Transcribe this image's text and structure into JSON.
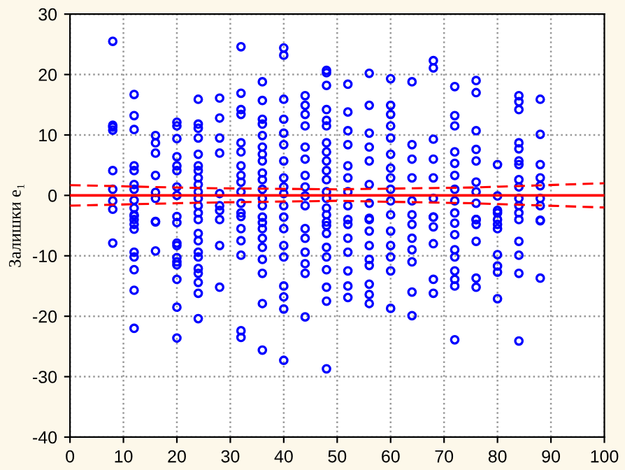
{
  "chart_data": {
    "type": "scatter",
    "ylabel": "Залишки e₁",
    "xlim": [
      0,
      100
    ],
    "ylim": [
      -40,
      30
    ],
    "xticks": [
      0,
      10,
      20,
      30,
      40,
      50,
      60,
      70,
      80,
      90,
      100
    ],
    "yticks": [
      -40,
      -30,
      -20,
      -10,
      0,
      10,
      20,
      30
    ],
    "grid": true,
    "marker": "circle",
    "ref_lines": [
      {
        "axis": "y",
        "value": 0,
        "color": "#ff0000",
        "line_style": "solid"
      }
    ],
    "series": [
      {
        "color": "#0000ff",
        "x": [
          8,
          8,
          8,
          8,
          8,
          8,
          8,
          8,
          8,
          12,
          12,
          12,
          12,
          12,
          12,
          12,
          12,
          12,
          12,
          12,
          12,
          12,
          12,
          12,
          12,
          12,
          12,
          12,
          16,
          16,
          16,
          16,
          16,
          16,
          16,
          16,
          16,
          20,
          20,
          20,
          20,
          20,
          20,
          20,
          20,
          20,
          20,
          20,
          20,
          20,
          20,
          20,
          20,
          20,
          20,
          24,
          24,
          24,
          24,
          24,
          24,
          24,
          24,
          24,
          24,
          24,
          24,
          24,
          24,
          24,
          24,
          24,
          24,
          24,
          24,
          24,
          24,
          24,
          28,
          28,
          28,
          28,
          28,
          28,
          28,
          28,
          28,
          28,
          32,
          32,
          32,
          32,
          32,
          32,
          32,
          32,
          32,
          32,
          32,
          32,
          32,
          32,
          32,
          32,
          32,
          32,
          36,
          36,
          36,
          36,
          36,
          36,
          36,
          36,
          36,
          36,
          36,
          36,
          36,
          36,
          36,
          36,
          36,
          36,
          36,
          36,
          36,
          36,
          40,
          40,
          40,
          40,
          40,
          40,
          40,
          40,
          40,
          40,
          40,
          40,
          40,
          40,
          40,
          40,
          40,
          40,
          40,
          44,
          44,
          44,
          44,
          44,
          44,
          44,
          44,
          44,
          44,
          44,
          44,
          44,
          44,
          44,
          44,
          48,
          48,
          48,
          48,
          48,
          48,
          48,
          48,
          48,
          48,
          48,
          48,
          48,
          48,
          48,
          48,
          48,
          48,
          48,
          48,
          48,
          48,
          48,
          48,
          52,
          52,
          52,
          52,
          52,
          52,
          52,
          52,
          52,
          52,
          52,
          52,
          52,
          52,
          52,
          56,
          56,
          56,
          56,
          56,
          56,
          56,
          56,
          56,
          56,
          56,
          56,
          56,
          56,
          56,
          56,
          60,
          60,
          60,
          60,
          60,
          60,
          60,
          60,
          60,
          60,
          60,
          60,
          60,
          60,
          60,
          60,
          64,
          64,
          64,
          64,
          64,
          64,
          64,
          64,
          64,
          64,
          64,
          64,
          68,
          68,
          68,
          68,
          68,
          68,
          68,
          68,
          68,
          68,
          68,
          68,
          72,
          72,
          72,
          72,
          72,
          72,
          72,
          72,
          72,
          72,
          72,
          72,
          72,
          72,
          72,
          72,
          72,
          76,
          76,
          76,
          76,
          76,
          76,
          76,
          76,
          76,
          76,
          76,
          76,
          76,
          76,
          80,
          80,
          80,
          80,
          80,
          80,
          80,
          80,
          80,
          80,
          80,
          84,
          84,
          84,
          84,
          84,
          84,
          84,
          84,
          84,
          84,
          84,
          84,
          84,
          84,
          84,
          84,
          84,
          88,
          88,
          88,
          88,
          88,
          88,
          88,
          88,
          88,
          88
        ],
        "values": [
          25.5,
          11.6,
          11.3,
          10.8,
          4.1,
          1.0,
          -0.9,
          -2.3,
          -7.9,
          16.7,
          13.2,
          10.9,
          4.9,
          4.1,
          1.8,
          1.0,
          -0.8,
          -2.1,
          -3.4,
          -4.0,
          -4.8,
          -9.4,
          -10.2,
          -12.3,
          -15.7,
          -22.0,
          -3.2,
          -5.6,
          9.9,
          8.7,
          7.0,
          3.3,
          0.5,
          -0.5,
          -4.3,
          -4.4,
          -9.2,
          12.1,
          11.5,
          9.4,
          6.4,
          4.9,
          4.1,
          1.4,
          0.0,
          -3.5,
          -4.5,
          -7.9,
          -8.3,
          -10.3,
          -11.0,
          -11.5,
          -13.9,
          -18.5,
          -23.6,
          15.9,
          11.8,
          11.1,
          9.5,
          6.8,
          4.9,
          4.1,
          2.9,
          1.8,
          0.6,
          -0.5,
          -1.7,
          -2.9,
          -4.0,
          -6.3,
          -7.5,
          -9.4,
          -10.2,
          -12.1,
          -12.9,
          -14.4,
          -16.2,
          -20.4,
          16.1,
          12.8,
          9.5,
          7.0,
          0.3,
          -1.7,
          -2.5,
          -4.0,
          -8.3,
          -15.2,
          24.6,
          16.9,
          14.2,
          13.4,
          8.7,
          7.2,
          4.9,
          3.3,
          2.2,
          0.6,
          -1.3,
          -2.9,
          -3.5,
          -5.5,
          -7.5,
          -9.9,
          -22.4,
          -23.5,
          18.8,
          15.7,
          12.6,
          11.8,
          9.9,
          8.0,
          6.8,
          5.7,
          3.7,
          2.6,
          1.0,
          -0.5,
          -1.7,
          -3.6,
          -5.5,
          -7.1,
          -8.6,
          -10.6,
          -12.9,
          -17.9,
          -25.6,
          -4.5,
          24.4,
          23.2,
          15.9,
          12.6,
          10.3,
          8.4,
          5.7,
          2.9,
          1.4,
          0.3,
          -1.7,
          -3.6,
          -5.5,
          -8.3,
          -10.2,
          -15.0,
          -16.8,
          -18.8,
          -27.3,
          16.5,
          14.9,
          13.4,
          11.5,
          8.0,
          6.0,
          3.3,
          1.4,
          -0.1,
          -1.7,
          -5.5,
          -7.1,
          -9.4,
          -11.3,
          -12.9,
          -20.1,
          20.7,
          20.3,
          18.2,
          14.2,
          12.4,
          11.5,
          8.7,
          7.2,
          5.7,
          4.1,
          2.6,
          0.6,
          -0.5,
          -2.1,
          -3.2,
          -4.4,
          -6.3,
          -8.6,
          -10.2,
          -12.3,
          -15.2,
          -17.5,
          -28.7,
          -5.0,
          18.4,
          13.8,
          10.7,
          8.4,
          4.9,
          2.9,
          0.6,
          -1.7,
          -4.0,
          -4.8,
          -7.1,
          -9.4,
          -12.5,
          -15.0,
          -16.9,
          20.2,
          14.9,
          10.3,
          8.0,
          5.7,
          1.8,
          -1.3,
          -3.8,
          -4.0,
          -5.9,
          -8.3,
          -10.6,
          -11.6,
          -14.7,
          -16.4,
          -17.9,
          19.3,
          14.9,
          13.4,
          11.5,
          9.5,
          6.8,
          4.5,
          2.9,
          1.0,
          -0.9,
          -3.2,
          -5.9,
          -8.3,
          -10.2,
          -12.5,
          -18.7,
          18.8,
          8.4,
          6.0,
          2.9,
          -0.9,
          -3.2,
          -4.8,
          -7.1,
          -9.0,
          -11.0,
          -16.0,
          -19.9,
          22.3,
          21.1,
          9.3,
          6.0,
          2.9,
          -0.5,
          -3.6,
          -3.6,
          -5.2,
          -8.0,
          -13.9,
          -16.2,
          18.0,
          13.2,
          11.5,
          7.2,
          5.3,
          3.3,
          1.0,
          -0.9,
          -2.9,
          -4.6,
          -6.5,
          -9.0,
          -10.2,
          -12.5,
          -13.9,
          -15.0,
          -23.9,
          19.0,
          17.0,
          10.7,
          7.6,
          5.7,
          2.2,
          0.6,
          -1.3,
          -4.0,
          -4.0,
          -4.8,
          -7.6,
          -13.7,
          -15.2,
          5.1,
          -0.1,
          -2.5,
          -4.0,
          -2.9,
          -4.8,
          -5.5,
          -9.8,
          -11.7,
          -12.7,
          -17.1,
          16.5,
          15.5,
          14.2,
          8.7,
          7.7,
          5.7,
          5.1,
          2.6,
          1.4,
          -0.5,
          -1.7,
          -2.9,
          -7.6,
          -9.9,
          -12.9,
          -24.1,
          -4.0,
          15.9,
          10.1,
          5.1,
          2.9,
          1.6,
          -0.5,
          -1.7,
          -4.2,
          -4.1,
          -13.7
        ]
      },
      {
        "type": "line",
        "color": "#ff0000",
        "marker": "none",
        "line_style": "dashed",
        "x": [
          0,
          25,
          50,
          75,
          100
        ],
        "values": [
          1.7,
          1.2,
          1.0,
          1.3,
          2.0
        ]
      },
      {
        "type": "line",
        "color": "#ff0000",
        "marker": "none",
        "line_style": "dashed",
        "x": [
          0,
          25,
          50,
          75,
          100
        ],
        "values": [
          -1.7,
          -1.2,
          -0.9,
          -1.3,
          -2.0
        ]
      }
    ]
  }
}
